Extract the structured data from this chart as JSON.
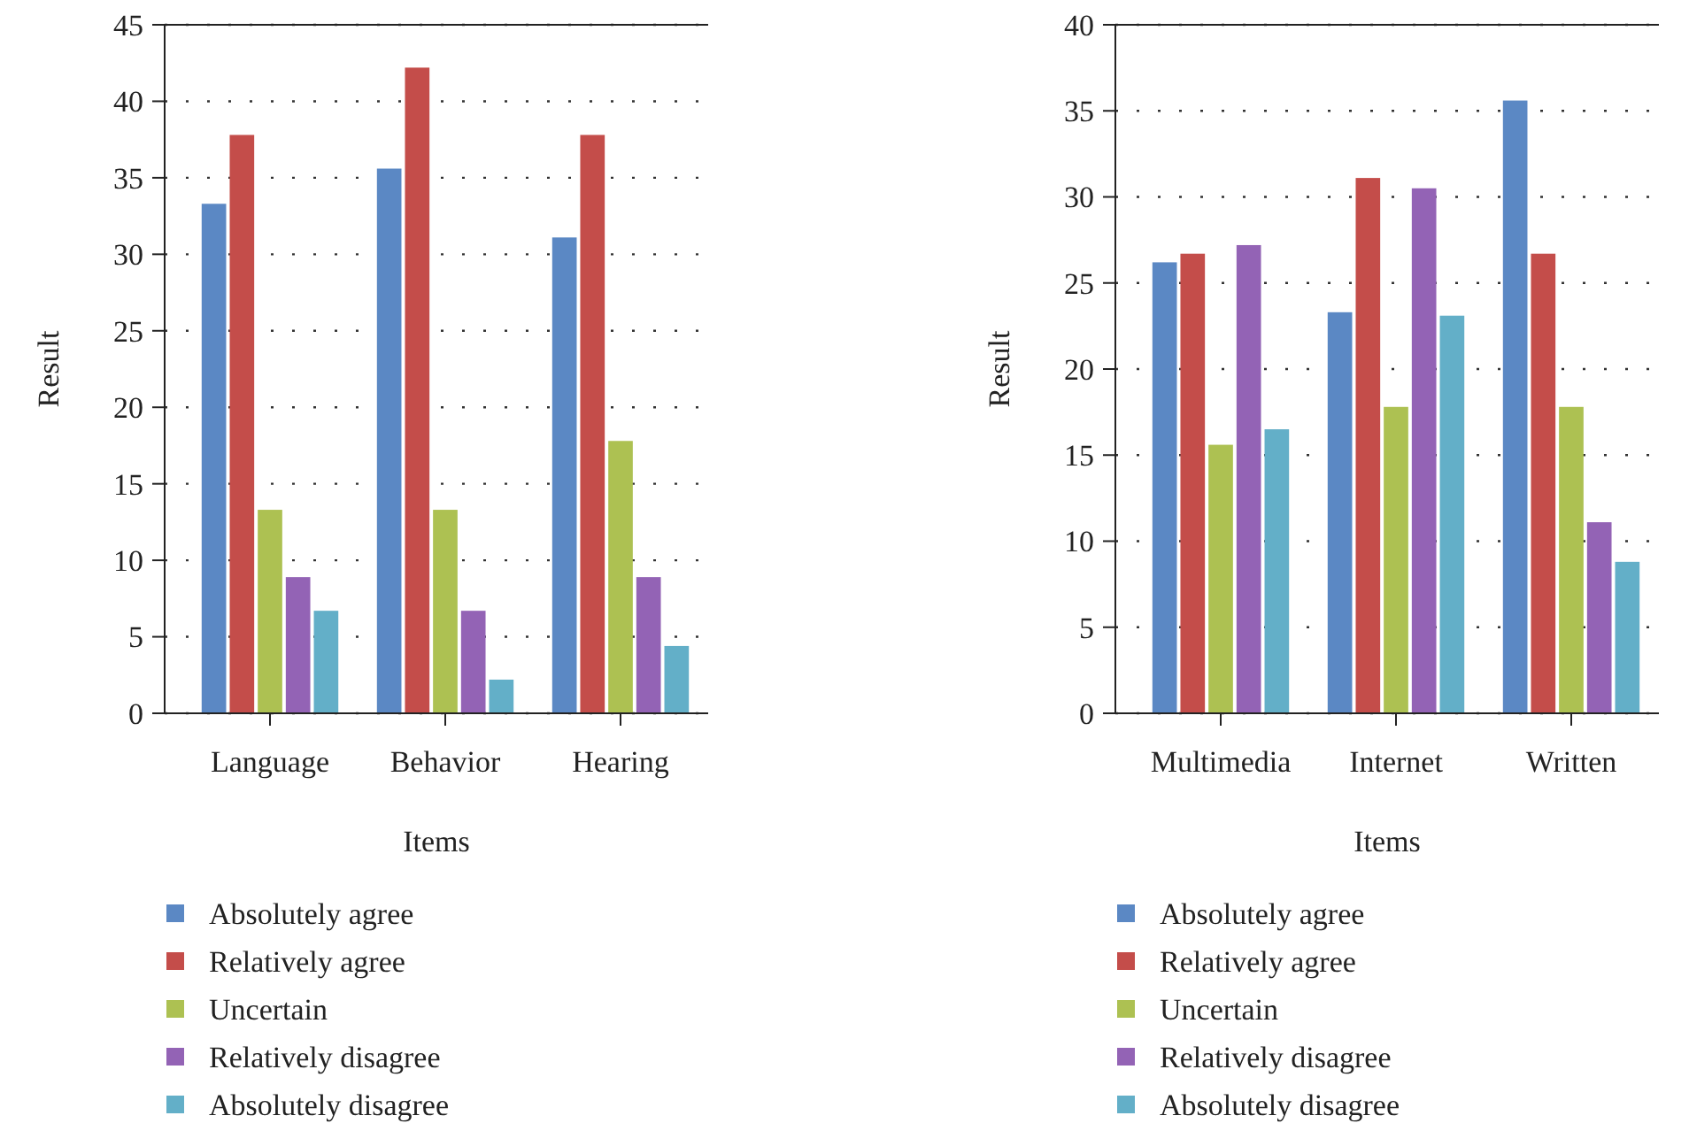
{
  "chart_data": [
    {
      "type": "bar",
      "xlabel": "Items",
      "ylabel": "Result",
      "categories": [
        "Language",
        "Behavior",
        "Hearing"
      ],
      "ylim": [
        0,
        45
      ],
      "yticks": [
        0,
        5,
        10,
        15,
        20,
        25,
        30,
        35,
        40,
        45
      ],
      "grid": "y",
      "legend": "bottom",
      "series": [
        {
          "name": "Absolutely agree",
          "color": "#5b88c4",
          "values": [
            33.3,
            35.6,
            31.1
          ]
        },
        {
          "name": "Relatively agree",
          "color": "#c44d4a",
          "values": [
            37.8,
            42.2,
            37.8
          ]
        },
        {
          "name": "Uncertain",
          "color": "#adc152",
          "values": [
            13.3,
            13.3,
            17.8
          ]
        },
        {
          "name": "Relatively disagree",
          "color": "#9363b5",
          "values": [
            8.9,
            6.7,
            8.9
          ]
        },
        {
          "name": "Absolutely disagree",
          "color": "#63afc8",
          "values": [
            6.7,
            2.2,
            4.4
          ]
        }
      ]
    },
    {
      "type": "bar",
      "xlabel": "Items",
      "ylabel": "Result",
      "categories": [
        "Multimedia",
        "Internet",
        "Written"
      ],
      "ylim": [
        0,
        40
      ],
      "yticks": [
        0,
        5,
        10,
        15,
        20,
        25,
        30,
        35,
        40
      ],
      "grid": "y",
      "legend": "bottom",
      "series": [
        {
          "name": "Absolutely agree",
          "color": "#5b88c4",
          "values": [
            26.2,
            23.3,
            35.6
          ]
        },
        {
          "name": "Relatively agree",
          "color": "#c44d4a",
          "values": [
            26.7,
            31.1,
            26.7
          ]
        },
        {
          "name": "Uncertain",
          "color": "#adc152",
          "values": [
            15.6,
            17.8,
            17.8
          ]
        },
        {
          "name": "Relatively disagree",
          "color": "#9363b5",
          "values": [
            27.2,
            30.5,
            11.1
          ]
        },
        {
          "name": "Absolutely disagree",
          "color": "#63afc8",
          "values": [
            16.5,
            23.1,
            8.8
          ]
        }
      ]
    }
  ]
}
